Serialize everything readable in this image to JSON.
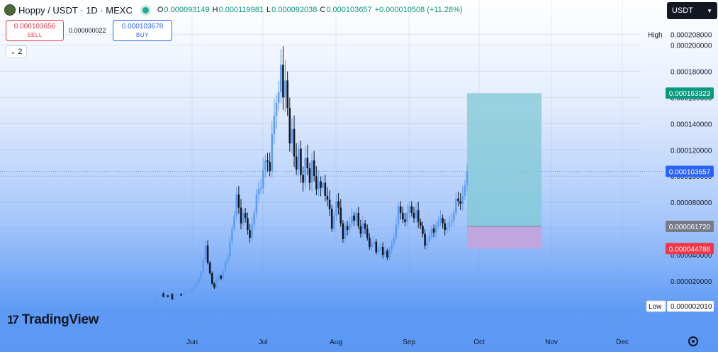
{
  "header": {
    "title": "Hoppy / USDT · 1D · MEXC",
    "open_label": "O",
    "open": "0.000093149",
    "high_label": "H",
    "high": "0.000119981",
    "low_label": "L",
    "low": "0.000092038",
    "close_label": "C",
    "close": "0.000103657",
    "change": "+0.000010508 (+11.28%)"
  },
  "trade": {
    "sell_price": "0.000103656",
    "sell_label": "SELL",
    "spread": "0.000000022",
    "buy_price": "0.000103678",
    "buy_label": "BUY"
  },
  "indicators_toggle": "2",
  "currency": "USDT",
  "brand": "TradingView",
  "colors": {
    "up": "#5b9cf6",
    "down": "#131722",
    "target": "#7fc8d4",
    "stop": "#c8a1da",
    "badge_green": "#089981",
    "badge_red": "#f23645",
    "badge_blue": "#2962ff",
    "badge_gray": "#787b86"
  },
  "chart_data": {
    "type": "candlestick",
    "symbol": "Hoppy / USDT",
    "interval": "1D",
    "exchange": "MEXC",
    "x_ticks": [
      "Jun",
      "Jul",
      "Aug",
      "Sep",
      "Oct",
      "Nov",
      "Dec"
    ],
    "y_ticks": [
      "0.000208000",
      "0.000200000",
      "0.000180000",
      "0.000160000",
      "0.000140000",
      "0.000120000",
      "0.000100000",
      "0.000080000",
      "0.000060000",
      "0.000040000",
      "0.000020000"
    ],
    "ylim": [
      0,
      0.000218
    ],
    "high_label": "High",
    "high_value": "0.000208000",
    "low_label": "Low",
    "low_value": "0.000002010",
    "last_price": "0.000103657",
    "position": {
      "target": "0.000163323",
      "entry": "0.000061720",
      "stop": "0.000044786"
    },
    "candles_close": [
      4e-06,
      8.5e-06,
      9e-06,
      1.05e-05,
      8e-06,
      9e-06,
      8e-06,
      1e-05,
      6e-06,
      7e-06,
      9e-06,
      1e-05,
      9e-06,
      1.1e-05,
      1.2e-05,
      1.2e-05,
      1.25e-05,
      1.45e-05,
      1.6e-05,
      1.9e-05,
      2.2e-05,
      2.7e-05,
      3.6e-05,
      4.7e-05,
      3.4e-05,
      2.6e-05,
      1.8e-05,
      1.5e-05,
      2.1e-05,
      2.4e-05,
      2.2e-05,
      2.8e-05,
      3.4e-05,
      3.8e-05,
      5e-05,
      6e-05,
      7e-05,
      8.6e-05,
      7.6e-05,
      6.4e-05,
      7.2e-05,
      6.8e-05,
      5.9e-05,
      5.3e-05,
      6.3e-05,
      7.2e-05,
      8.6e-05,
      9e-05,
      9.1e-05,
      0.000105,
      0.000112,
      0.000111,
      0.000104,
      0.000132,
      0.000146,
      0.000156,
      0.000164,
      0.000185,
      0.00016,
      0.000173,
      0.000152,
      0.000125,
      0.000136,
      0.000115,
      0.000105,
      0.000121,
      0.000101,
      9.5e-05,
      0.000114,
      0.000106,
      9.5e-05,
      0.000112,
      0.0001,
      9e-05,
      9.6e-05,
      9.1e-05,
      9.5e-05,
      8.5e-05,
      8.2e-05,
      7.5e-05,
      6e-05,
      7e-05,
      8.1e-05,
      7.6e-05,
      6.4e-05,
      5.2e-05,
      6.2e-05,
      5.9e-05,
      6.4e-05,
      7e-05,
      6.6e-05,
      7.2e-05,
      6.2e-05,
      5.6e-05,
      6.4e-05,
      6e-05,
      5.3e-05,
      4.6e-05,
      4.9e-05,
      5e-05,
      4.2e-05,
      4.5e-05,
      4.6e-05,
      4e-05,
      4.3e-05,
      3.8e-05,
      4.4e-05,
      4.8e-05,
      5.3e-05,
      6.3e-05,
      7.7e-05,
      7.2e-05,
      6.7e-05,
      6.5e-05,
      7.2e-05,
      7.7e-05,
      7.2e-05,
      6.8e-05,
      7.4e-05,
      6.5e-05,
      6.2e-05,
      5.6e-05,
      4.7e-05,
      5e-05,
      5.4e-05,
      6e-05,
      5.7e-05,
      6.2e-05,
      6.5e-05,
      6.8e-05,
      6.4e-05,
      5.9e-05,
      6.1e-05,
      6.5e-05,
      6.6e-05,
      7.2e-05,
      8.3e-05,
      8.1e-05,
      7.9e-05,
      8.5e-05,
      9.31e-05,
      0.0001037
    ]
  }
}
